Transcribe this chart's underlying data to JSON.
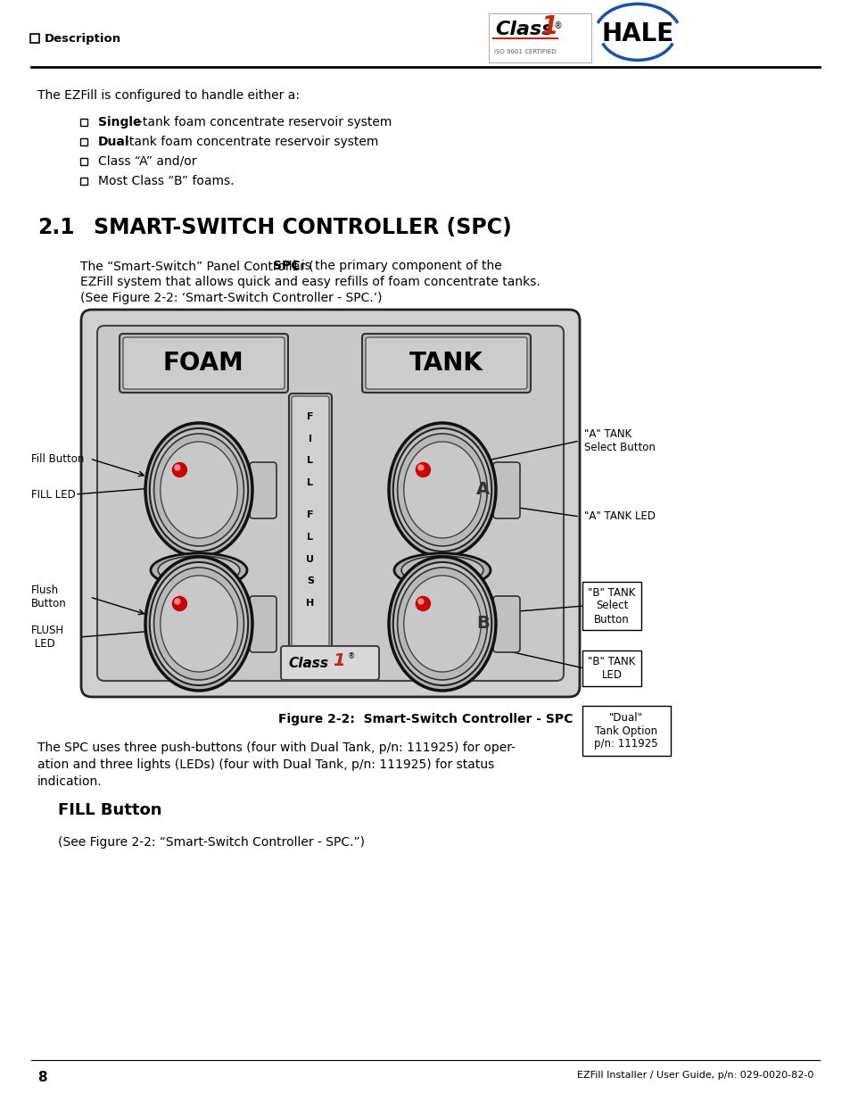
{
  "page_num": "8",
  "footer_text": "EZFill Installer / User Guide, p/n: 029-0020-82-0",
  "header_section": "❑  Description",
  "section_num": "2.1",
  "section_title": "SMART-SWITCH CONTROLLER (SPC)",
  "intro_text": "The EZFill is configured to handle either a:",
  "bullet_items": [
    {
      "bold": "Single",
      "rest": "-tank foam concentrate reservoir system"
    },
    {
      "bold": "Dual",
      "rest": "-tank foam concentrate reservoir system"
    },
    {
      "bold": "",
      "rest": "Class “A” and/or"
    },
    {
      "bold": "",
      "rest": "Most Class “B” foams."
    }
  ],
  "body_text_line1_pre": "The “Smart-Switch” Panel Controller (",
  "body_text_line1_bold": "SPC",
  "body_text_line1_post": ") is the primary component of the",
  "body_text_line2": "EZFill system that allows quick and easy refills of foam concentrate tanks.",
  "body_text_line3": "(See Figure 2-2: ‘Smart-Switch Controller - SPC.’)",
  "figure_caption": "Figure 2-2:  Smart-Switch Controller - SPC",
  "spc_desc_line1": "The SPC uses three push-buttons (four with Dual Tank, p/n: 111925) for oper-",
  "spc_desc_line2": "ation and three lights (LEDs) (four with Dual Tank, p/n: 111925) for status",
  "spc_desc_line3": "indication.",
  "fill_button_title": "FILL Button",
  "fill_button_text": "(See Figure 2-2: “Smart-Switch Controller - SPC.”)",
  "bg_color": "#ffffff",
  "text_color": "#000000",
  "panel_bg": "#c8c8c8",
  "panel_border": "#333333",
  "led_color": "#cc0000",
  "label_fill_button": "Fill Button",
  "label_fill_led": "FILL LED",
  "label_flush_button": "Flush\nButton",
  "label_flush_led": "FLUSH\n  LED",
  "label_a_tank_select": "\"A\" TANK\nSelect Button",
  "label_a_tank_led": "\"A\" TANK LED",
  "label_b_tank_select": "\"B\" TANK\nSelect\nButton",
  "label_b_tank_led": "\"B\" TANK\nLED",
  "label_dual": "\"Dual\"\nTank Option\np/n: 111925"
}
